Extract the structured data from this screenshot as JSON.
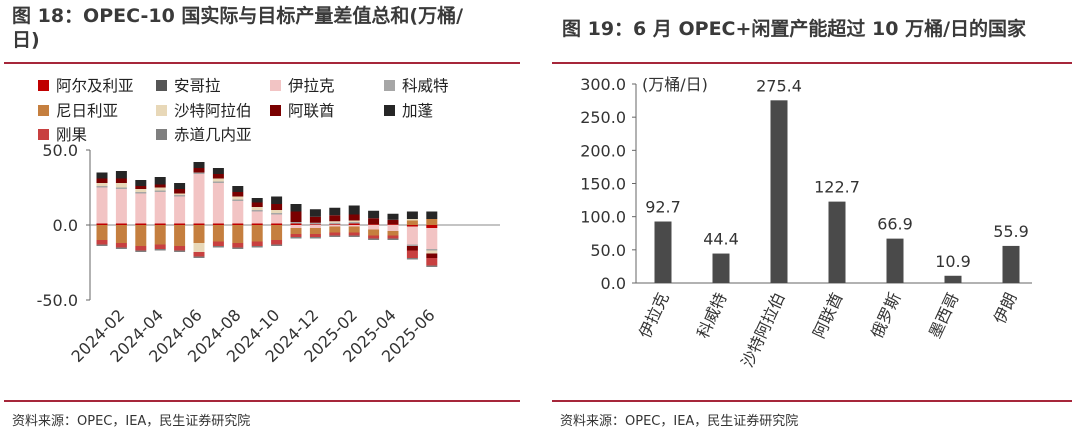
{
  "left_panel": {
    "title_line1": "图 18：OPEC-10 国实际与目标产量差值总和(万桶/",
    "title_line2": "日)",
    "source": "资料来源：OPEC，IEA，民生证券研究院"
  },
  "right_panel": {
    "title": "图 19：6 月 OPEC+闲置产能超过 10 万桶/日的国家",
    "source": "资料来源：OPEC，IEA，民生证券研究院"
  },
  "chart_data": [
    {
      "type": "bar",
      "stacked": true,
      "title": "",
      "ylim": [
        -50,
        50
      ],
      "yticks": [
        -50,
        0,
        50
      ],
      "ytick_labels": [
        "-50.0",
        "0.0",
        "50.0"
      ],
      "x_tick_labels": [
        "2024-02",
        "2024-04",
        "2024-06",
        "2024-08",
        "2024-10",
        "2024-12",
        "2025-02",
        "2025-04",
        "2025-06"
      ],
      "categories": [
        "2024-01",
        "2024-02",
        "2024-03",
        "2024-04",
        "2024-05",
        "2024-06",
        "2024-07",
        "2024-08",
        "2024-09",
        "2024-10",
        "2024-11",
        "2024-12",
        "2025-01",
        "2025-02",
        "2025-03",
        "2025-04",
        "2025-05",
        "2025-06"
      ],
      "grid": false,
      "legend_position": "top",
      "series": [
        {
          "name": "阿尔及利亚",
          "color": "#c00000",
          "values": [
            1,
            1,
            1,
            1,
            1,
            1,
            1,
            1,
            1,
            1,
            1,
            0.5,
            0.5,
            1,
            0.5,
            0.5,
            -1,
            -2
          ]
        },
        {
          "name": "安哥拉",
          "color": "#555555",
          "values": [
            0,
            0,
            0,
            0,
            0,
            0,
            0,
            0,
            0,
            0,
            0,
            0,
            0,
            0,
            0,
            0,
            0,
            0
          ]
        },
        {
          "name": "伊拉克",
          "color": "#f2c4c4",
          "values": [
            24,
            23,
            20,
            21,
            18,
            33,
            27,
            15,
            8,
            6,
            -2,
            -2,
            -1,
            -1,
            -3,
            -4,
            -12,
            -14
          ]
        },
        {
          "name": "科威特",
          "color": "#a6a6a6",
          "values": [
            1,
            1,
            1,
            1,
            1,
            1,
            1,
            1,
            1,
            1,
            1,
            1,
            1,
            1,
            0,
            0,
            -1,
            -1
          ]
        },
        {
          "name": "尼日利亚",
          "color": "#c57f3f",
          "values": [
            -10,
            -12,
            -14,
            -13,
            -14,
            -12,
            -11,
            -12,
            -11,
            -10,
            -4,
            -4,
            -4,
            -4,
            -4,
            -3,
            3,
            4
          ]
        },
        {
          "name": "沙特阿拉伯",
          "color": "#e8d8b8",
          "values": [
            2,
            3,
            2,
            2,
            1,
            -6,
            2,
            2,
            2,
            2,
            0,
            0,
            1,
            1,
            0,
            0,
            1,
            -2
          ]
        },
        {
          "name": "阿联酋",
          "color": "#7a0000",
          "values": [
            3,
            3,
            2,
            2,
            3,
            3,
            3,
            3,
            3,
            4,
            7,
            4,
            4,
            4,
            4,
            3,
            -3,
            -3
          ]
        },
        {
          "name": "加蓬",
          "color": "#262626",
          "values": [
            4,
            5,
            4,
            5,
            4,
            4,
            4,
            4,
            3,
            5,
            5,
            5,
            5,
            6,
            5,
            4,
            5,
            5
          ]
        },
        {
          "name": "刚果",
          "color": "#c84040",
          "values": [
            -3,
            -3,
            -3,
            -3,
            -3,
            -3,
            -3,
            -3,
            -3,
            -3,
            -2,
            -2,
            -2,
            -2,
            -2,
            -2,
            -5,
            -5
          ]
        },
        {
          "name": "赤道几内亚",
          "color": "#7f7f7f",
          "values": [
            -1,
            -1,
            -1,
            -1,
            -1,
            -1,
            -1,
            -1,
            -1,
            -1,
            -1,
            -1,
            -1,
            -1,
            -1,
            -1,
            -1,
            -1
          ]
        }
      ]
    },
    {
      "type": "bar",
      "title": "",
      "ylabel": "(万桶/日)",
      "ylim": [
        0,
        300
      ],
      "yticks": [
        0,
        50,
        100,
        150,
        200,
        250,
        300
      ],
      "ytick_labels": [
        "0.0",
        "50.0",
        "100.0",
        "150.0",
        "200.0",
        "250.0",
        "300.0"
      ],
      "categories": [
        "伊拉克",
        "科威特",
        "沙特阿拉伯",
        "阿联酋",
        "俄罗斯",
        "墨西哥",
        "伊朗"
      ],
      "values": [
        92.7,
        44.4,
        275.4,
        122.7,
        66.9,
        10.9,
        55.9
      ],
      "data_labels": [
        "92.7",
        "44.4",
        "275.4",
        "122.7",
        "66.9",
        "10.9",
        "55.9"
      ],
      "color": "#4a4a4a",
      "grid": false
    }
  ]
}
